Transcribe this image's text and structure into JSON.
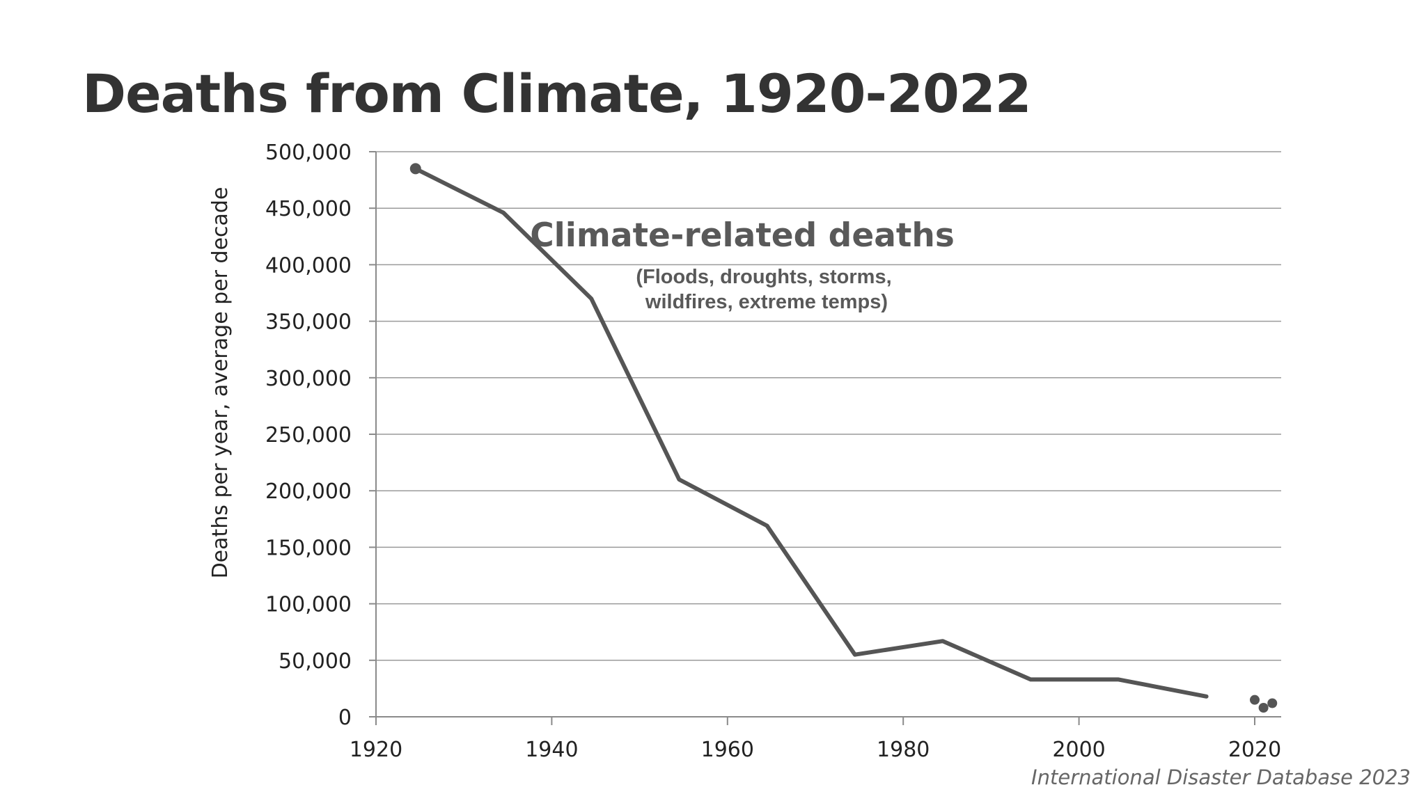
{
  "title": "Deaths from Climate, 1920-2022",
  "source": "International Disaster Database 2023",
  "chart_data": {
    "type": "line",
    "ylabel": "Deaths per year, average per decade",
    "xlabel": "",
    "xlim": [
      1920,
      2022.5
    ],
    "ylim": [
      0,
      500000
    ],
    "x_ticks": [
      1920,
      1940,
      1960,
      1980,
      2000,
      2020
    ],
    "y_ticks": [
      0,
      50000,
      100000,
      150000,
      200000,
      250000,
      300000,
      350000,
      400000,
      450000,
      500000
    ],
    "x_tick_labels": [
      "1920",
      "1940",
      "1960",
      "1980",
      "2000",
      "2020"
    ],
    "y_tick_labels": [
      "0",
      "50,000",
      "100,000",
      "150,000",
      "200,000",
      "250,000",
      "300,000",
      "350,000",
      "400,000",
      "450,000",
      "500,000"
    ],
    "grid": "horizontal",
    "line_color": "#555555",
    "series": [
      {
        "type": "line",
        "x": [
          1924.5,
          1934.5,
          1944.5,
          1954.5,
          1964.5,
          1974.5,
          1984.5,
          1994.5,
          2004.5,
          2014.5
        ],
        "y": [
          485000,
          446000,
          370000,
          210000,
          169000,
          55000,
          67000,
          33000,
          33000,
          18000
        ]
      },
      {
        "type": "scatter",
        "x": [
          2020,
          2021,
          2022
        ],
        "y": [
          15000,
          8000,
          12000
        ]
      }
    ],
    "annotations": [
      {
        "text": "Climate-related deaths",
        "style": "main"
      },
      {
        "text": "(Floods, droughts, storms,",
        "style": "sub"
      },
      {
        "text": "wildfires, extreme temps)",
        "style": "sub"
      }
    ]
  }
}
